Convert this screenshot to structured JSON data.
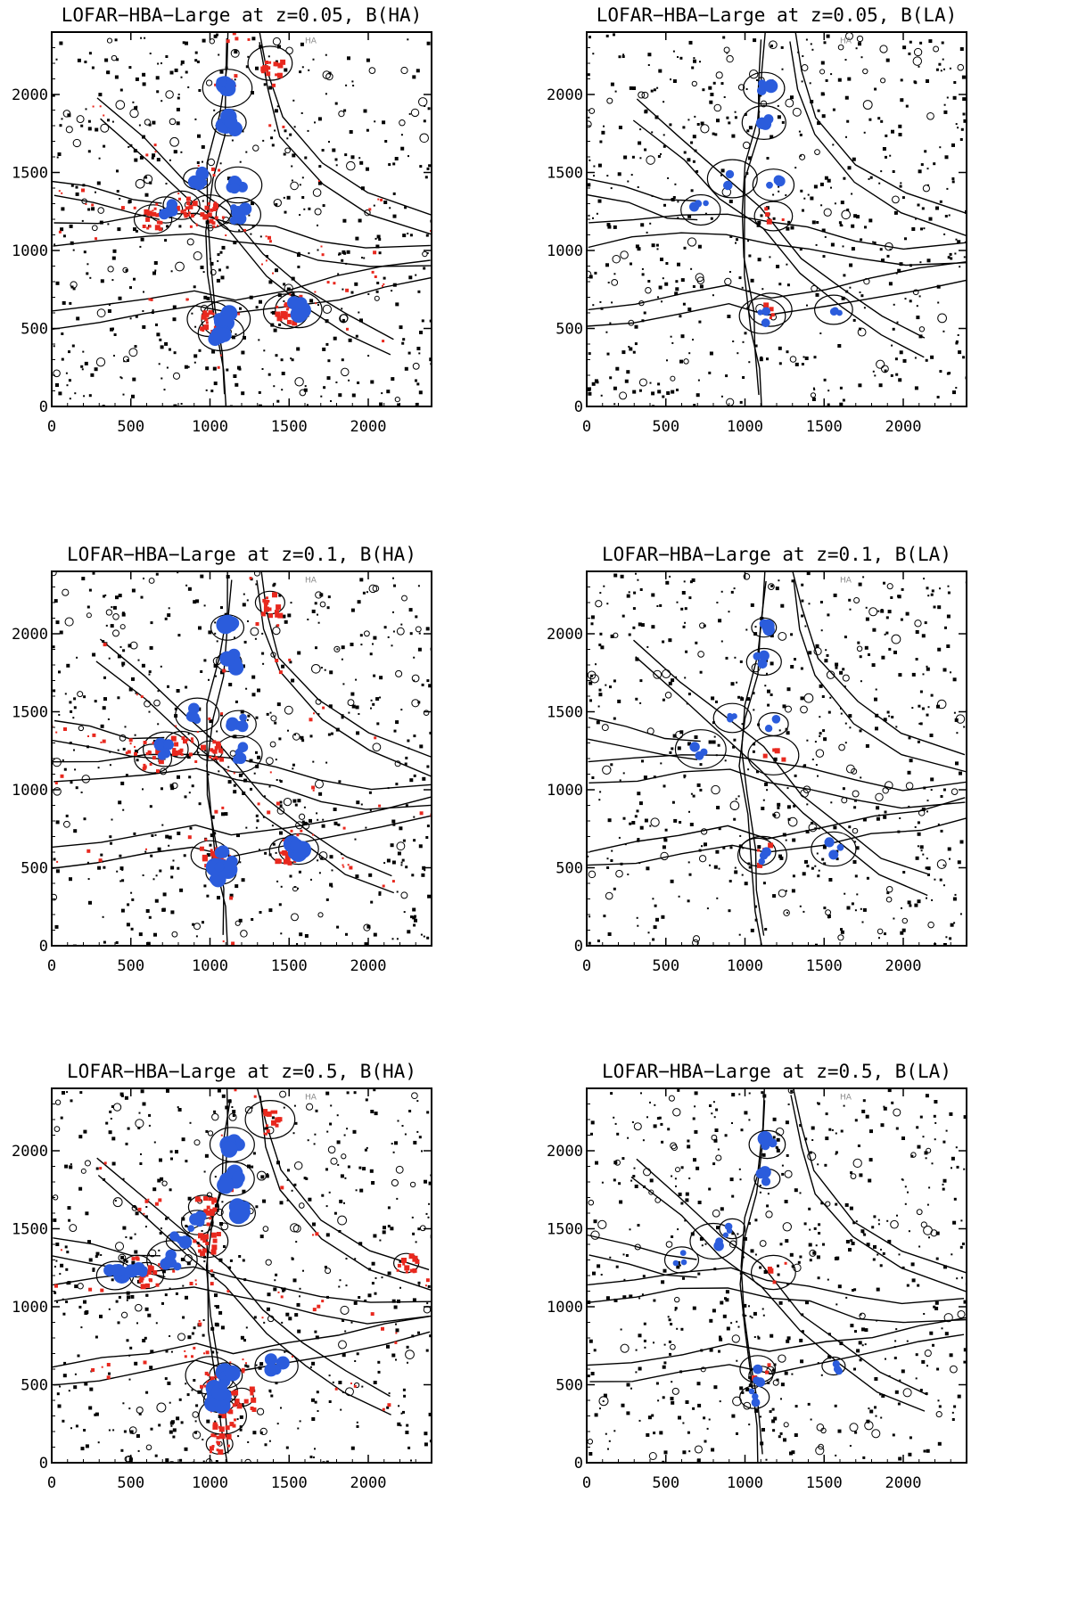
{
  "figure": {
    "colors": {
      "background": "#ffffff",
      "axis": "#000000",
      "contour": "#000000",
      "cells": "#000000",
      "highlight_red": "#e8281e",
      "highlight_blue": "#2b5cdc"
    },
    "marks": [
      "HA",
      "HA",
      "HA",
      "HA",
      "HA",
      "HA"
    ]
  },
  "chart_data": [
    {
      "type": "heatmap",
      "title": "LOFAR−HBA−Large at z=0.05, B(HA)",
      "xlabel": "",
      "ylabel": "",
      "xlim": [
        0,
        2400
      ],
      "ylim": [
        0,
        2400
      ],
      "xticks": [
        "0",
        "500",
        "1000",
        "1500",
        "2000"
      ],
      "yticks": [
        "0",
        "500",
        "1000",
        "1500",
        "2000"
      ],
      "grid": false,
      "variant": "HA",
      "z": 0.05,
      "blue_clumps": [
        [
          1110,
          2040
        ],
        [
          1120,
          1820
        ],
        [
          920,
          1460
        ],
        [
          1180,
          1420
        ],
        [
          720,
          1260
        ],
        [
          1180,
          1230
        ],
        [
          1100,
          560
        ],
        [
          1560,
          620
        ],
        [
          1070,
          470
        ]
      ],
      "red_clumps": [
        [
          820,
          1290
        ],
        [
          640,
          1200
        ],
        [
          1000,
          1250
        ],
        [
          1000,
          560
        ],
        [
          1380,
          2200
        ],
        [
          1480,
          610
        ]
      ]
    },
    {
      "type": "heatmap",
      "title": "LOFAR−HBA−Large at z=0.05, B(LA)",
      "xlabel": "",
      "ylabel": "",
      "xlim": [
        0,
        2400
      ],
      "ylim": [
        0,
        2400
      ],
      "xticks": [
        "0",
        "500",
        "1000",
        "1500",
        "2000"
      ],
      "yticks": [
        "0",
        "500",
        "1000",
        "1500",
        "2000"
      ],
      "grid": false,
      "variant": "LA",
      "z": 0.05,
      "blue_clumps": [
        [
          1120,
          2040
        ],
        [
          1120,
          1820
        ],
        [
          920,
          1460
        ],
        [
          1180,
          1420
        ],
        [
          720,
          1260
        ],
        [
          1110,
          580
        ],
        [
          1560,
          620
        ]
      ],
      "red_clumps": [
        [
          1160,
          620
        ],
        [
          1180,
          1220
        ]
      ]
    },
    {
      "type": "heatmap",
      "title": "LOFAR−HBA−Large at z=0.1, B(HA)",
      "xlabel": "",
      "ylabel": "",
      "xlim": [
        0,
        2400
      ],
      "ylim": [
        0,
        2400
      ],
      "xticks": [
        "0",
        "500",
        "1000",
        "1500",
        "2000"
      ],
      "yticks": [
        "0",
        "500",
        "1000",
        "1500",
        "2000"
      ],
      "grid": false,
      "variant": "HA",
      "z": 0.1,
      "blue_clumps": [
        [
          1110,
          2040
        ],
        [
          1120,
          1820
        ],
        [
          920,
          1480
        ],
        [
          1180,
          1420
        ],
        [
          720,
          1260
        ],
        [
          1180,
          1230
        ],
        [
          1100,
          560
        ],
        [
          1560,
          620
        ],
        [
          1070,
          470
        ]
      ],
      "red_clumps": [
        [
          820,
          1290
        ],
        [
          640,
          1200
        ],
        [
          1000,
          1250
        ],
        [
          1000,
          580
        ],
        [
          1380,
          2200
        ],
        [
          1480,
          610
        ]
      ]
    },
    {
      "type": "heatmap",
      "title": "LOFAR−HBA−Large at z=0.1, B(LA)",
      "xlabel": "",
      "ylabel": "",
      "xlim": [
        0,
        2400
      ],
      "ylim": [
        0,
        2400
      ],
      "xticks": [
        "0",
        "500",
        "1000",
        "1500",
        "2000"
      ],
      "yticks": [
        "0",
        "500",
        "1000",
        "1500",
        "2000"
      ],
      "grid": false,
      "variant": "LA",
      "z": 0.1,
      "blue_clumps": [
        [
          1120,
          2040
        ],
        [
          1120,
          1820
        ],
        [
          920,
          1460
        ],
        [
          1180,
          1420
        ],
        [
          720,
          1260
        ],
        [
          1110,
          580
        ],
        [
          1560,
          620
        ]
      ],
      "red_clumps": [
        [
          1080,
          600
        ],
        [
          1180,
          1220
        ]
      ]
    },
    {
      "type": "heatmap",
      "title": "LOFAR−HBA−Large at z=0.5, B(HA)",
      "xlabel": "",
      "ylabel": "",
      "xlim": [
        0,
        2400
      ],
      "ylim": [
        0,
        2400
      ],
      "xticks": [
        "0",
        "500",
        "1000",
        "1500",
        "2000"
      ],
      "yticks": [
        "0",
        "500",
        "1000",
        "1500",
        "2000"
      ],
      "grid": false,
      "variant": "HA",
      "z": 0.5,
      "blue_clumps": [
        [
          1140,
          2040
        ],
        [
          1140,
          1820
        ],
        [
          920,
          1540
        ],
        [
          800,
          1420
        ],
        [
          540,
          1260
        ],
        [
          760,
          1300
        ],
        [
          1180,
          1600
        ],
        [
          1100,
          560
        ],
        [
          1420,
          620
        ],
        [
          1060,
          400
        ],
        [
          400,
          1200
        ],
        [
          1060,
          460
        ]
      ],
      "red_clumps": [
        [
          960,
          1640
        ],
        [
          980,
          1420
        ],
        [
          1000,
          560
        ],
        [
          1080,
          300
        ],
        [
          1200,
          420
        ],
        [
          600,
          1200
        ],
        [
          1060,
          120
        ],
        [
          2240,
          1280
        ],
        [
          1380,
          2200
        ]
      ]
    },
    {
      "type": "heatmap",
      "title": "LOFAR−HBA−Large at z=0.5, B(LA)",
      "xlabel": "",
      "ylabel": "",
      "xlim": [
        0,
        2400
      ],
      "ylim": [
        0,
        2400
      ],
      "xticks": [
        "0",
        "500",
        "1000",
        "1500",
        "2000"
      ],
      "yticks": [
        "0",
        "500",
        "1000",
        "1500",
        "2000"
      ],
      "grid": false,
      "variant": "LA",
      "z": 0.5,
      "blue_clumps": [
        [
          1140,
          2040
        ],
        [
          1140,
          1820
        ],
        [
          920,
          1500
        ],
        [
          800,
          1420
        ],
        [
          600,
          1300
        ],
        [
          1100,
          560
        ],
        [
          1560,
          620
        ],
        [
          1060,
          420
        ]
      ],
      "red_clumps": [
        [
          1080,
          600
        ],
        [
          1180,
          1220
        ]
      ]
    }
  ]
}
